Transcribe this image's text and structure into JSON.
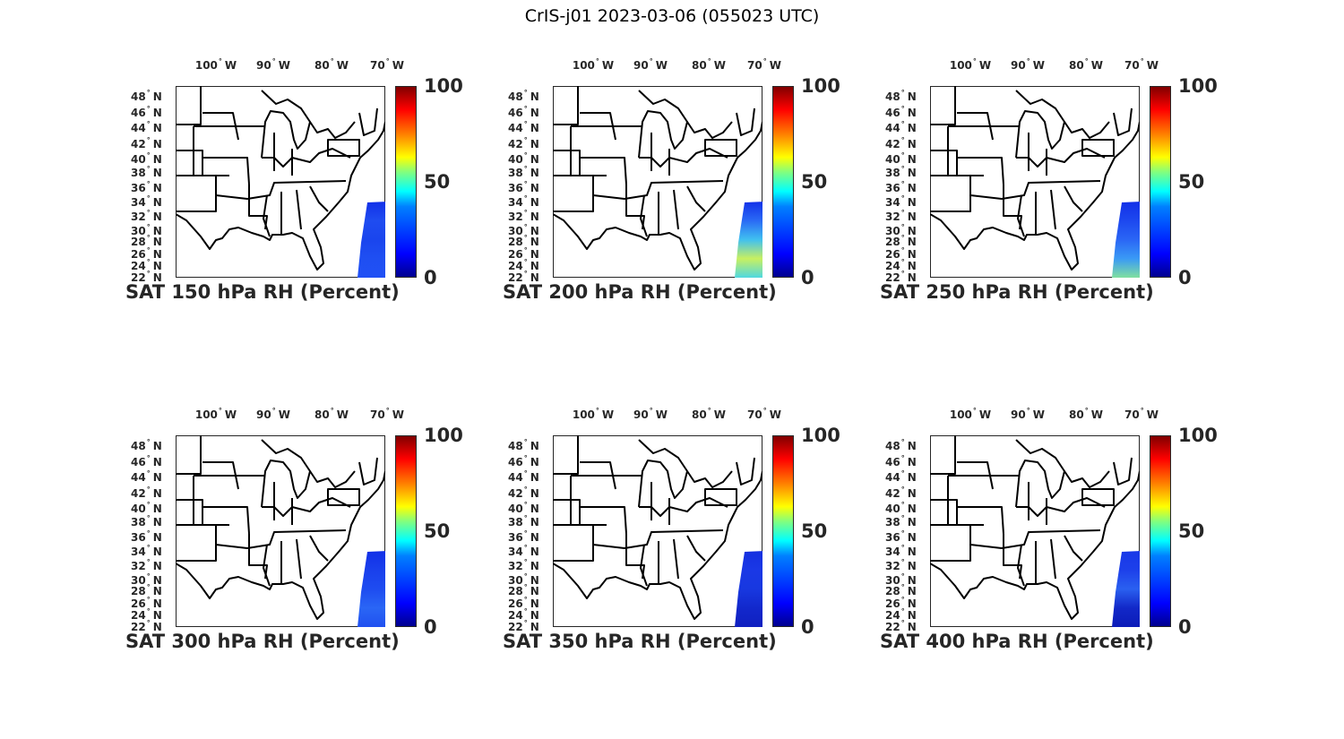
{
  "figure_title": "CrIS-j01 2023-03-06 (055023 UTC)",
  "chart_data": [
    {
      "type": "heatmap",
      "title": "SAT 150 hPa RH (Percent)",
      "lon_ticks": [
        "100",
        "90",
        "80",
        "70"
      ],
      "lon_hemi": "W",
      "lat_ticks": [
        "48",
        "46",
        "44",
        "42",
        "40",
        "38",
        "36",
        "34",
        "32",
        "30",
        "28",
        "26",
        "24",
        "22"
      ],
      "lat_hemi": "N",
      "colorbar_ticks": [
        "100",
        "50",
        "0"
      ],
      "clim": [
        0,
        100
      ],
      "swath_colors": [
        "#1230e8",
        "#1f4cf0",
        "#1a45ee",
        "#1f4ff2",
        "#2050f5"
      ]
    },
    {
      "type": "heatmap",
      "title": "SAT 200 hPa RH (Percent)",
      "lon_ticks": [
        "100",
        "90",
        "80",
        "70"
      ],
      "lon_hemi": "W",
      "lat_ticks": [
        "48",
        "46",
        "44",
        "42",
        "40",
        "38",
        "36",
        "34",
        "32",
        "30",
        "28",
        "26",
        "24",
        "22"
      ],
      "lat_hemi": "N",
      "colorbar_ticks": [
        "100",
        "50",
        "0"
      ],
      "clim": [
        0,
        100
      ],
      "swath_colors": [
        "#1230e8",
        "#2a6af5",
        "#40c0f0",
        "#c8f060",
        "#50d8e0"
      ]
    },
    {
      "type": "heatmap",
      "title": "SAT 250 hPa RH (Percent)",
      "lon_ticks": [
        "100",
        "90",
        "80",
        "70"
      ],
      "lon_hemi": "W",
      "lat_ticks": [
        "48",
        "46",
        "44",
        "42",
        "40",
        "38",
        "36",
        "34",
        "32",
        "30",
        "28",
        "26",
        "24",
        "22"
      ],
      "lat_hemi": "N",
      "colorbar_ticks": [
        "100",
        "50",
        "0"
      ],
      "clim": [
        0,
        100
      ],
      "swath_colors": [
        "#1230e8",
        "#1d48ef",
        "#2a66f5",
        "#3a9af5",
        "#80e0a0"
      ]
    },
    {
      "type": "heatmap",
      "title": "SAT 300 hPa RH (Percent)",
      "lon_ticks": [
        "100",
        "90",
        "80",
        "70"
      ],
      "lon_hemi": "W",
      "lat_ticks": [
        "48",
        "46",
        "44",
        "42",
        "40",
        "38",
        "36",
        "34",
        "32",
        "30",
        "28",
        "26",
        "24",
        "22"
      ],
      "lat_hemi": "N",
      "colorbar_ticks": [
        "100",
        "50",
        "0"
      ],
      "clim": [
        0,
        100
      ],
      "swath_colors": [
        "#1230e8",
        "#1a40ec",
        "#1e4cf0",
        "#2a66f5",
        "#2050f0"
      ]
    },
    {
      "type": "heatmap",
      "title": "SAT 350 hPa RH (Percent)",
      "lon_ticks": [
        "100",
        "90",
        "80",
        "70"
      ],
      "lon_hemi": "W",
      "lat_ticks": [
        "48",
        "46",
        "44",
        "42",
        "40",
        "38",
        "36",
        "34",
        "32",
        "30",
        "28",
        "26",
        "24",
        "22"
      ],
      "lat_hemi": "N",
      "colorbar_ticks": [
        "100",
        "50",
        "0"
      ],
      "clim": [
        0,
        100
      ],
      "swath_colors": [
        "#1530e0",
        "#1a38e6",
        "#1838e0",
        "#1228cc",
        "#1020c0"
      ]
    },
    {
      "type": "heatmap",
      "title": "SAT 400 hPa RH (Percent)",
      "lon_ticks": [
        "100",
        "90",
        "80",
        "70"
      ],
      "lon_hemi": "W",
      "lat_ticks": [
        "48",
        "46",
        "44",
        "42",
        "40",
        "38",
        "36",
        "34",
        "32",
        "30",
        "28",
        "26",
        "24",
        "22"
      ],
      "lat_hemi": "N",
      "colorbar_ticks": [
        "100",
        "50",
        "0"
      ],
      "clim": [
        0,
        100
      ],
      "swath_colors": [
        "#1838e8",
        "#1d40ea",
        "#2a60f0",
        "#1228c8",
        "#0c1cb8"
      ]
    }
  ]
}
